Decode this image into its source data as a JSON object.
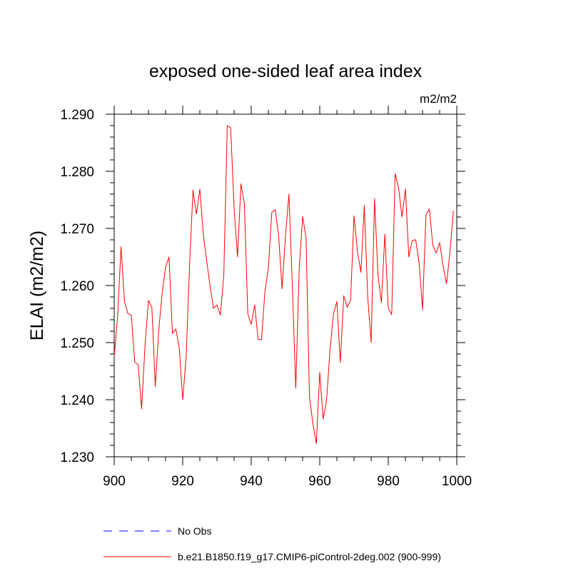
{
  "chart_data": {
    "type": "line",
    "title": "exposed one-sided leaf area index",
    "units_label": "m2/m2",
    "xlabel": "",
    "ylabel": "ELAI  (m2/m2)",
    "xlim": [
      900,
      1000
    ],
    "ylim": [
      1.23,
      1.29
    ],
    "xticks": [
      900,
      920,
      940,
      960,
      980,
      1000
    ],
    "xtick_labels": [
      "900",
      "920",
      "940",
      "960",
      "980",
      "1000"
    ],
    "yticks": [
      1.23,
      1.24,
      1.25,
      1.26,
      1.27,
      1.28,
      1.29
    ],
    "ytick_labels": [
      "1.230",
      "1.240",
      "1.250",
      "1.260",
      "1.270",
      "1.280",
      "1.290"
    ],
    "legend": [
      {
        "label": "No Obs",
        "color": "#0000ff",
        "style": "dashed"
      },
      {
        "label": "b.e21.B1850.f19_g17.CMIP6-piControl-2deg.002 (900-999)",
        "color": "#ff0000",
        "style": "solid"
      }
    ],
    "series": [
      {
        "name": "b.e21.B1850.f19_g17.CMIP6-piControl-2deg.002 (900-999)",
        "color": "#ff0000",
        "x": [
          900,
          901,
          902,
          903,
          904,
          905,
          906,
          907,
          908,
          909,
          910,
          911,
          912,
          913,
          914,
          915,
          916,
          917,
          918,
          919,
          920,
          921,
          922,
          923,
          924,
          925,
          926,
          927,
          928,
          929,
          930,
          931,
          932,
          933,
          934,
          935,
          936,
          937,
          938,
          939,
          940,
          941,
          942,
          943,
          944,
          945,
          946,
          947,
          948,
          949,
          950,
          951,
          952,
          953,
          954,
          955,
          956,
          957,
          958,
          959,
          960,
          961,
          962,
          963,
          964,
          965,
          966,
          967,
          968,
          969,
          970,
          971,
          972,
          973,
          974,
          975,
          976,
          977,
          978,
          979,
          980,
          981,
          982,
          983,
          984,
          985,
          986,
          987,
          988,
          989,
          990,
          991,
          992,
          993,
          994,
          995,
          996,
          997,
          998,
          999
        ],
        "values": [
          1.2475,
          1.2545,
          1.2668,
          1.2572,
          1.2551,
          1.2548,
          1.2466,
          1.2461,
          1.2384,
          1.2495,
          1.2574,
          1.2561,
          1.2423,
          1.2522,
          1.2586,
          1.2632,
          1.265,
          1.2516,
          1.2524,
          1.249,
          1.24,
          1.2475,
          1.2635,
          1.2767,
          1.2725,
          1.2769,
          1.269,
          1.2643,
          1.2598,
          1.256,
          1.2566,
          1.2548,
          1.262,
          1.288,
          1.2876,
          1.2735,
          1.265,
          1.2778,
          1.2743,
          1.255,
          1.2532,
          1.2566,
          1.2506,
          1.2505,
          1.259,
          1.263,
          1.2728,
          1.2733,
          1.2687,
          1.2594,
          1.2688,
          1.276,
          1.26,
          1.242,
          1.263,
          1.2721,
          1.2683,
          1.2405,
          1.2358,
          1.2323,
          1.2448,
          1.2366,
          1.24,
          1.2487,
          1.255,
          1.2572,
          1.2465,
          1.2582,
          1.2562,
          1.2574,
          1.2722,
          1.266,
          1.2623,
          1.274,
          1.258,
          1.25,
          1.2752,
          1.2618,
          1.257,
          1.269,
          1.256,
          1.2549,
          1.2796,
          1.2771,
          1.272,
          1.2769,
          1.265,
          1.2679,
          1.268,
          1.264,
          1.2558,
          1.2724,
          1.2734,
          1.267,
          1.2657,
          1.2675,
          1.2634,
          1.2603,
          1.2658,
          1.2731
        ]
      }
    ]
  }
}
